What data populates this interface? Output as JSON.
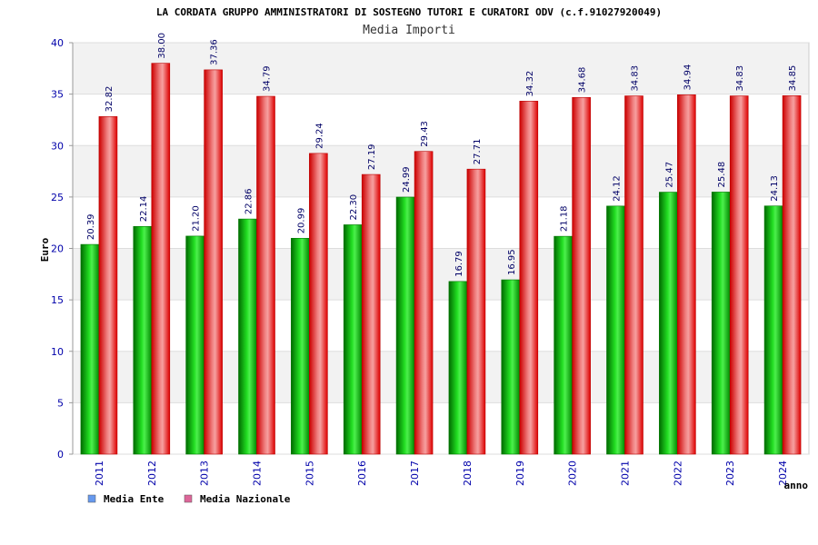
{
  "chart_data": {
    "type": "bar",
    "title": "LA CORDATA GRUPPO AMMINISTRATORI DI SOSTEGNO TUTORI E CURATORI ODV (c.f.91027920049)",
    "subtitle": "Media Importi",
    "xlabel": "anno",
    "ylabel": "Euro",
    "ylim": [
      0,
      40
    ],
    "yticks": [
      0,
      5,
      10,
      15,
      20,
      25,
      30,
      35,
      40
    ],
    "grid": true,
    "legend_position": "bottom-left",
    "categories": [
      "2011",
      "2012",
      "2013",
      "2014",
      "2015",
      "2016",
      "2017",
      "2018",
      "2019",
      "2020",
      "2021",
      "2022",
      "2023",
      "2024"
    ],
    "series": [
      {
        "name": "Media Ente",
        "color": "#00aa00",
        "legend_color": "#6699ee",
        "values": [
          20.39,
          22.14,
          21.2,
          22.86,
          20.99,
          22.3,
          24.99,
          16.79,
          16.95,
          21.18,
          24.12,
          25.47,
          25.48,
          24.13
        ],
        "labels": [
          "20.39",
          "22.14",
          "21.20",
          "22.86",
          "20.99",
          "22.30",
          "24.99",
          "16.79",
          "16.95",
          "21.18",
          "24.12",
          "25.47",
          "25.48",
          "24.13"
        ]
      },
      {
        "name": "Media Nazionale",
        "color": "#ee0000",
        "legend_color": "#dd6699",
        "values": [
          32.82,
          38.0,
          37.36,
          34.79,
          29.24,
          27.19,
          29.43,
          27.71,
          34.32,
          34.68,
          34.83,
          34.94,
          34.83,
          34.85
        ],
        "labels": [
          "32.82",
          "38.00",
          "37.36",
          "34.79",
          "29.24",
          "27.19",
          "29.43",
          "27.71",
          "34.32",
          "34.68",
          "34.83",
          "34.94",
          "34.83",
          "34.85"
        ]
      }
    ]
  }
}
